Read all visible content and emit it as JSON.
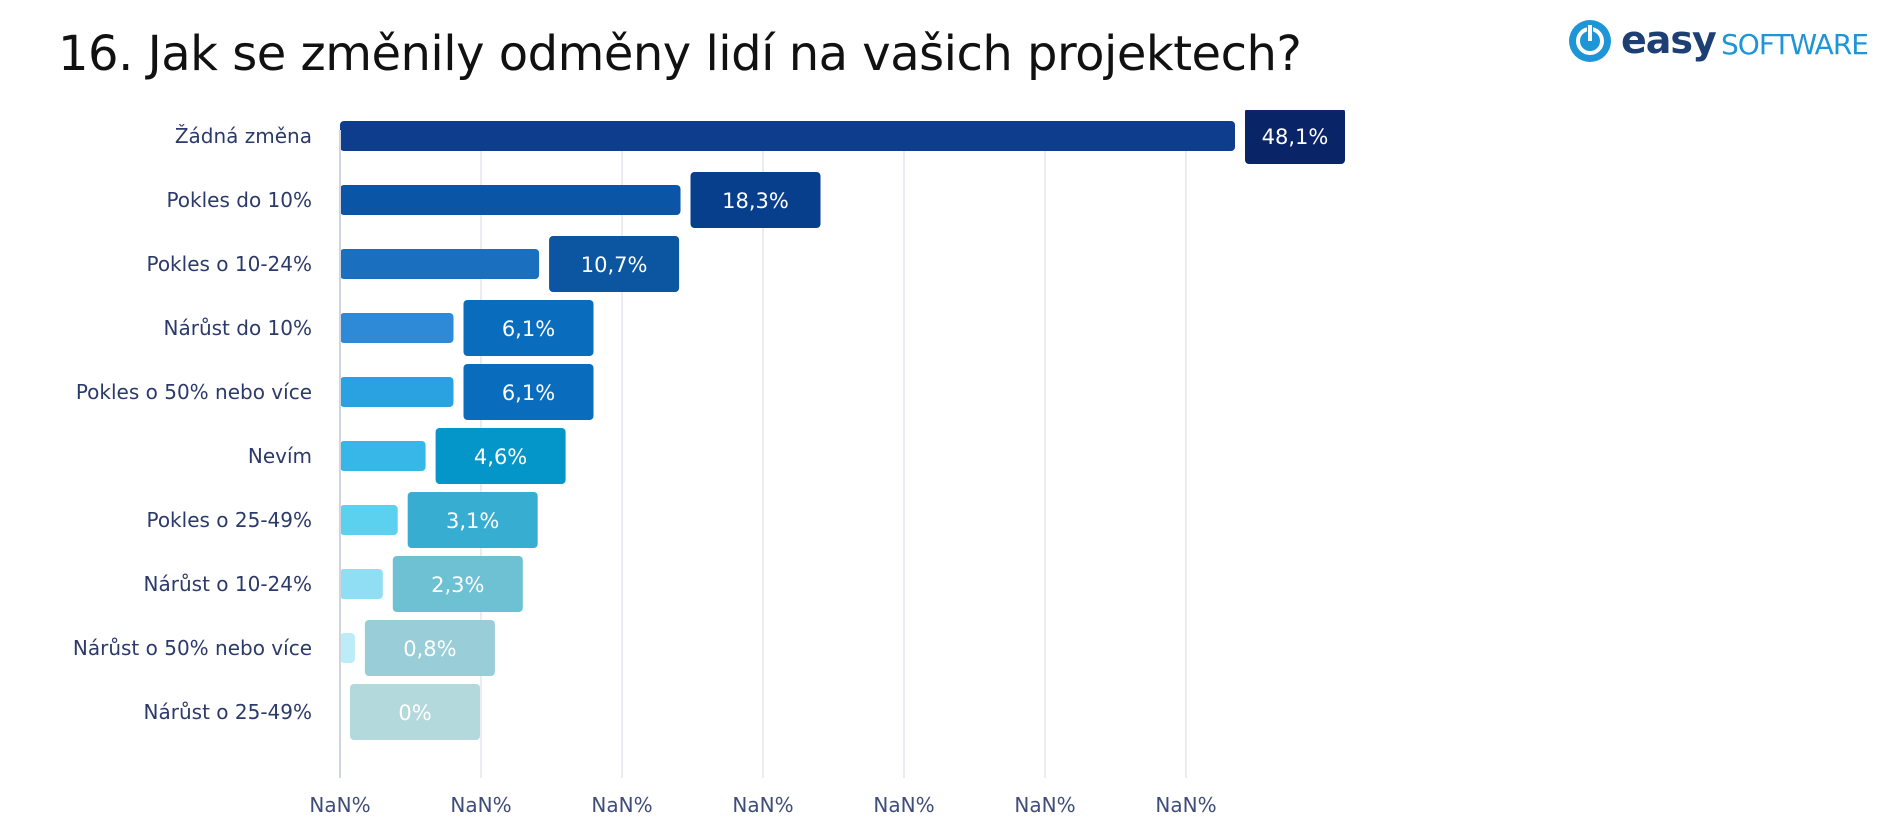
{
  "page": {
    "title": "16. Jak se změnily odměny lidí na vašich projektech?"
  },
  "logo": {
    "word_bold": "easy",
    "word_light": "SOFTWARE",
    "icon": "power-icon",
    "colors": {
      "dark": "#1d3f73",
      "accent": "#1e95d6"
    }
  },
  "chart_data": {
    "type": "bar",
    "orientation": "horizontal",
    "title": "",
    "xlabel": "",
    "ylabel": "",
    "categories": [
      "Žádná změna",
      "Pokles do 10%",
      "Pokles o 10-24%",
      "Nárůst do 10%",
      "Pokles o 50% nebo více",
      "Nevím",
      "Pokles o 25-49%",
      "Nárůst o 10-24%",
      "Nárůst o 50% nebo více",
      "Nárůst o 25-49%"
    ],
    "values": [
      48.1,
      18.3,
      10.7,
      6.1,
      6.1,
      4.6,
      3.1,
      2.3,
      0.8,
      0
    ],
    "data_labels": [
      "48,1%",
      "18,3%",
      "10,7%",
      "6,1%",
      "6,1%",
      "4,6%",
      "3,1%",
      "2,3%",
      "0,8%",
      "0%"
    ],
    "x_tick_labels": [
      "NaN%",
      "NaN%",
      "NaN%",
      "NaN%",
      "NaN%",
      "NaN%",
      "NaN%"
    ],
    "xlim": [
      0,
      48.1
    ],
    "grid": true,
    "bar_colors": [
      "#0d3d8c",
      "#0a55a5",
      "#1a6fbe",
      "#2e8ad7",
      "#2aa1e0",
      "#37b7e8",
      "#5bd0ef",
      "#8fdef4",
      "#bcecf8",
      "#ffffff"
    ],
    "label_colors": [
      "#0a2468",
      "#083f8d",
      "#0b55a1",
      "#0a6cbc",
      "#0a6cbc",
      "#0596c9",
      "#37aed1",
      "#6ec0d3",
      "#99cdd8",
      "#b4d9dd"
    ],
    "axis_colors": {
      "category": "#2b3a6b",
      "tick": "#3f4d7a",
      "grid": "#e2e5ec"
    }
  }
}
